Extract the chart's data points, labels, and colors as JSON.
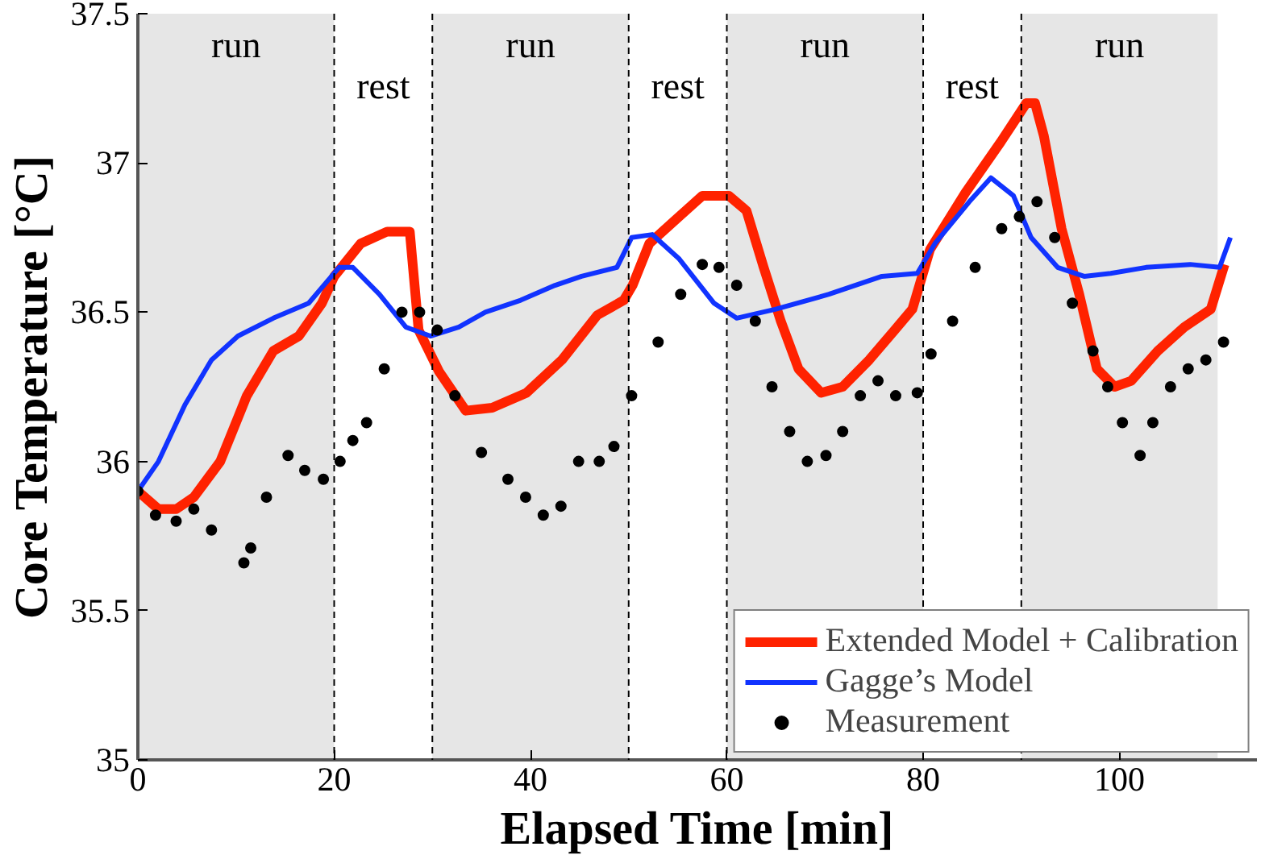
{
  "chart_data": {
    "type": "line",
    "xlabel": "Elapsed Time [min]",
    "ylabel": "Core Temperature [°C]",
    "xlim": [
      0,
      114
    ],
    "xticks": [
      0,
      20,
      40,
      60,
      80,
      100
    ],
    "ylim": [
      35,
      37.5
    ],
    "yticks": [
      35,
      {
        "value": 35.5,
        "label": "35.5"
      },
      36,
      {
        "value": 36.5,
        "label": "36.5"
      },
      37,
      {
        "value": 37.5,
        "label": "37.5"
      }
    ],
    "grid": false,
    "legend": "bottom right",
    "series": [
      {
        "name": "Extended Model + Calibration",
        "color": "#ff2200",
        "line_style": "solid",
        "x": [
          0,
          2.1,
          3.9,
          5.7,
          8.4,
          11.1,
          13.8,
          16.4,
          18.75,
          20,
          22.7,
          25.4,
          27.7,
          28.6,
          30.7,
          33.4,
          36.1,
          39.6,
          43.2,
          46.8,
          49.5,
          50.4,
          52.1,
          54.8,
          57.5,
          60.2,
          62,
          63.75,
          65.5,
          67.3,
          69.6,
          71.8,
          74.5,
          77.1,
          78.9,
          80.7,
          84.3,
          87.9,
          90.5,
          91.4,
          92.3,
          94.1,
          95.9,
          97.7,
          99.5,
          101.2,
          103.9,
          106.6,
          109.3,
          110.7
        ],
        "values": [
          35.9,
          35.84,
          35.84,
          35.88,
          36.0,
          36.22,
          36.37,
          36.42,
          36.53,
          36.62,
          36.73,
          36.77,
          36.77,
          36.44,
          36.3,
          36.17,
          36.18,
          36.23,
          36.34,
          36.49,
          36.54,
          36.59,
          36.73,
          36.81,
          36.89,
          36.89,
          36.84,
          36.65,
          36.47,
          36.31,
          36.23,
          36.25,
          36.34,
          36.44,
          36.51,
          36.71,
          36.9,
          37.07,
          37.2,
          37.2,
          37.09,
          36.78,
          36.56,
          36.31,
          36.25,
          36.27,
          36.37,
          36.45,
          36.51,
          36.66
        ]
      },
      {
        "name": "Gagge’s Model",
        "color": "#1133ff",
        "line_style": "solid",
        "x": [
          0,
          2.1,
          4.8,
          7.5,
          10.2,
          13.8,
          17.4,
          19.2,
          20.5,
          21.9,
          24.6,
          27.3,
          29.8,
          32.7,
          35.4,
          39,
          42.5,
          45.2,
          48.8,
          50.3,
          52.4,
          55.1,
          58.7,
          61,
          65,
          70.4,
          75.8,
          79.4,
          81.2,
          84.7,
          86.9,
          89.2,
          91,
          93.7,
          96.4,
          99.1,
          102.7,
          107.2,
          110.2,
          111.3
        ],
        "values": [
          35.9,
          36.0,
          36.19,
          36.34,
          36.42,
          36.48,
          36.53,
          36.6,
          36.65,
          36.65,
          36.56,
          36.45,
          36.42,
          36.45,
          36.5,
          36.54,
          36.59,
          36.62,
          36.65,
          36.75,
          36.76,
          36.68,
          36.53,
          36.48,
          36.51,
          36.56,
          36.62,
          36.63,
          36.73,
          36.87,
          36.95,
          36.89,
          36.75,
          36.65,
          36.62,
          36.63,
          36.65,
          36.66,
          36.65,
          36.75
        ]
      },
      {
        "name": "Measurement",
        "type": "scatter",
        "marker": "circle",
        "color": "#000000",
        "x": [
          0,
          1.8,
          3.9,
          5.7,
          7.5,
          10.8,
          11.5,
          13.1,
          15.3,
          17,
          18.9,
          20.6,
          21.9,
          23.3,
          25.1,
          26.9,
          28.7,
          30.5,
          32.3,
          35,
          37.7,
          39.5,
          41.3,
          43.1,
          44.9,
          47,
          48.5,
          50.3,
          53,
          55.3,
          57.5,
          59.2,
          61,
          62.9,
          64.6,
          66.4,
          68.2,
          70.1,
          71.8,
          73.6,
          75.4,
          77.2,
          79.4,
          80.8,
          83,
          85.3,
          88,
          89.8,
          91.6,
          93.4,
          95.2,
          97.3,
          98.8,
          100.3,
          102.1,
          103.4,
          105.2,
          107,
          108.8,
          110.6
        ],
        "values": [
          35.9,
          35.82,
          35.8,
          35.84,
          35.77,
          35.66,
          35.71,
          35.88,
          36.02,
          35.97,
          35.94,
          36.0,
          36.07,
          36.13,
          36.31,
          36.5,
          36.5,
          36.44,
          36.22,
          36.03,
          35.94,
          35.88,
          35.82,
          35.85,
          36.0,
          36.0,
          36.05,
          36.22,
          36.4,
          36.56,
          36.66,
          36.65,
          36.59,
          36.47,
          36.25,
          36.1,
          36.0,
          36.02,
          36.1,
          36.22,
          36.27,
          36.22,
          36.23,
          36.36,
          36.47,
          36.65,
          36.78,
          36.82,
          36.87,
          36.75,
          36.53,
          36.37,
          36.25,
          36.13,
          36.02,
          36.13,
          36.25,
          36.31,
          36.34,
          36.4
        ]
      }
    ],
    "bands": [
      {
        "axis": "x",
        "from": 0,
        "to": 20,
        "label": "run",
        "color": "#e6e6e6"
      },
      {
        "axis": "x",
        "from": 30,
        "to": 50,
        "label": "run",
        "color": "#e6e6e6"
      },
      {
        "axis": "x",
        "from": 60,
        "to": 80,
        "label": "run",
        "color": "#e6e6e6"
      },
      {
        "axis": "x",
        "from": 90,
        "to": 110,
        "label": "run",
        "color": "#e6e6e6"
      }
    ],
    "annotations": [
      "rest",
      "rest",
      "rest"
    ],
    "ref_lines": [
      {
        "axis": "x",
        "value": 20,
        "line_style": "dashed",
        "color": "#000000"
      },
      {
        "axis": "x",
        "value": 30,
        "line_style": "dashed",
        "color": "#000000"
      },
      {
        "axis": "x",
        "value": 50,
        "line_style": "dashed",
        "color": "#000000"
      },
      {
        "axis": "x",
        "value": 60,
        "line_style": "dashed",
        "color": "#000000"
      },
      {
        "axis": "x",
        "value": 80,
        "line_style": "dashed",
        "color": "#000000"
      },
      {
        "axis": "x",
        "value": 90,
        "line_style": "dashed",
        "color": "#000000"
      }
    ]
  }
}
